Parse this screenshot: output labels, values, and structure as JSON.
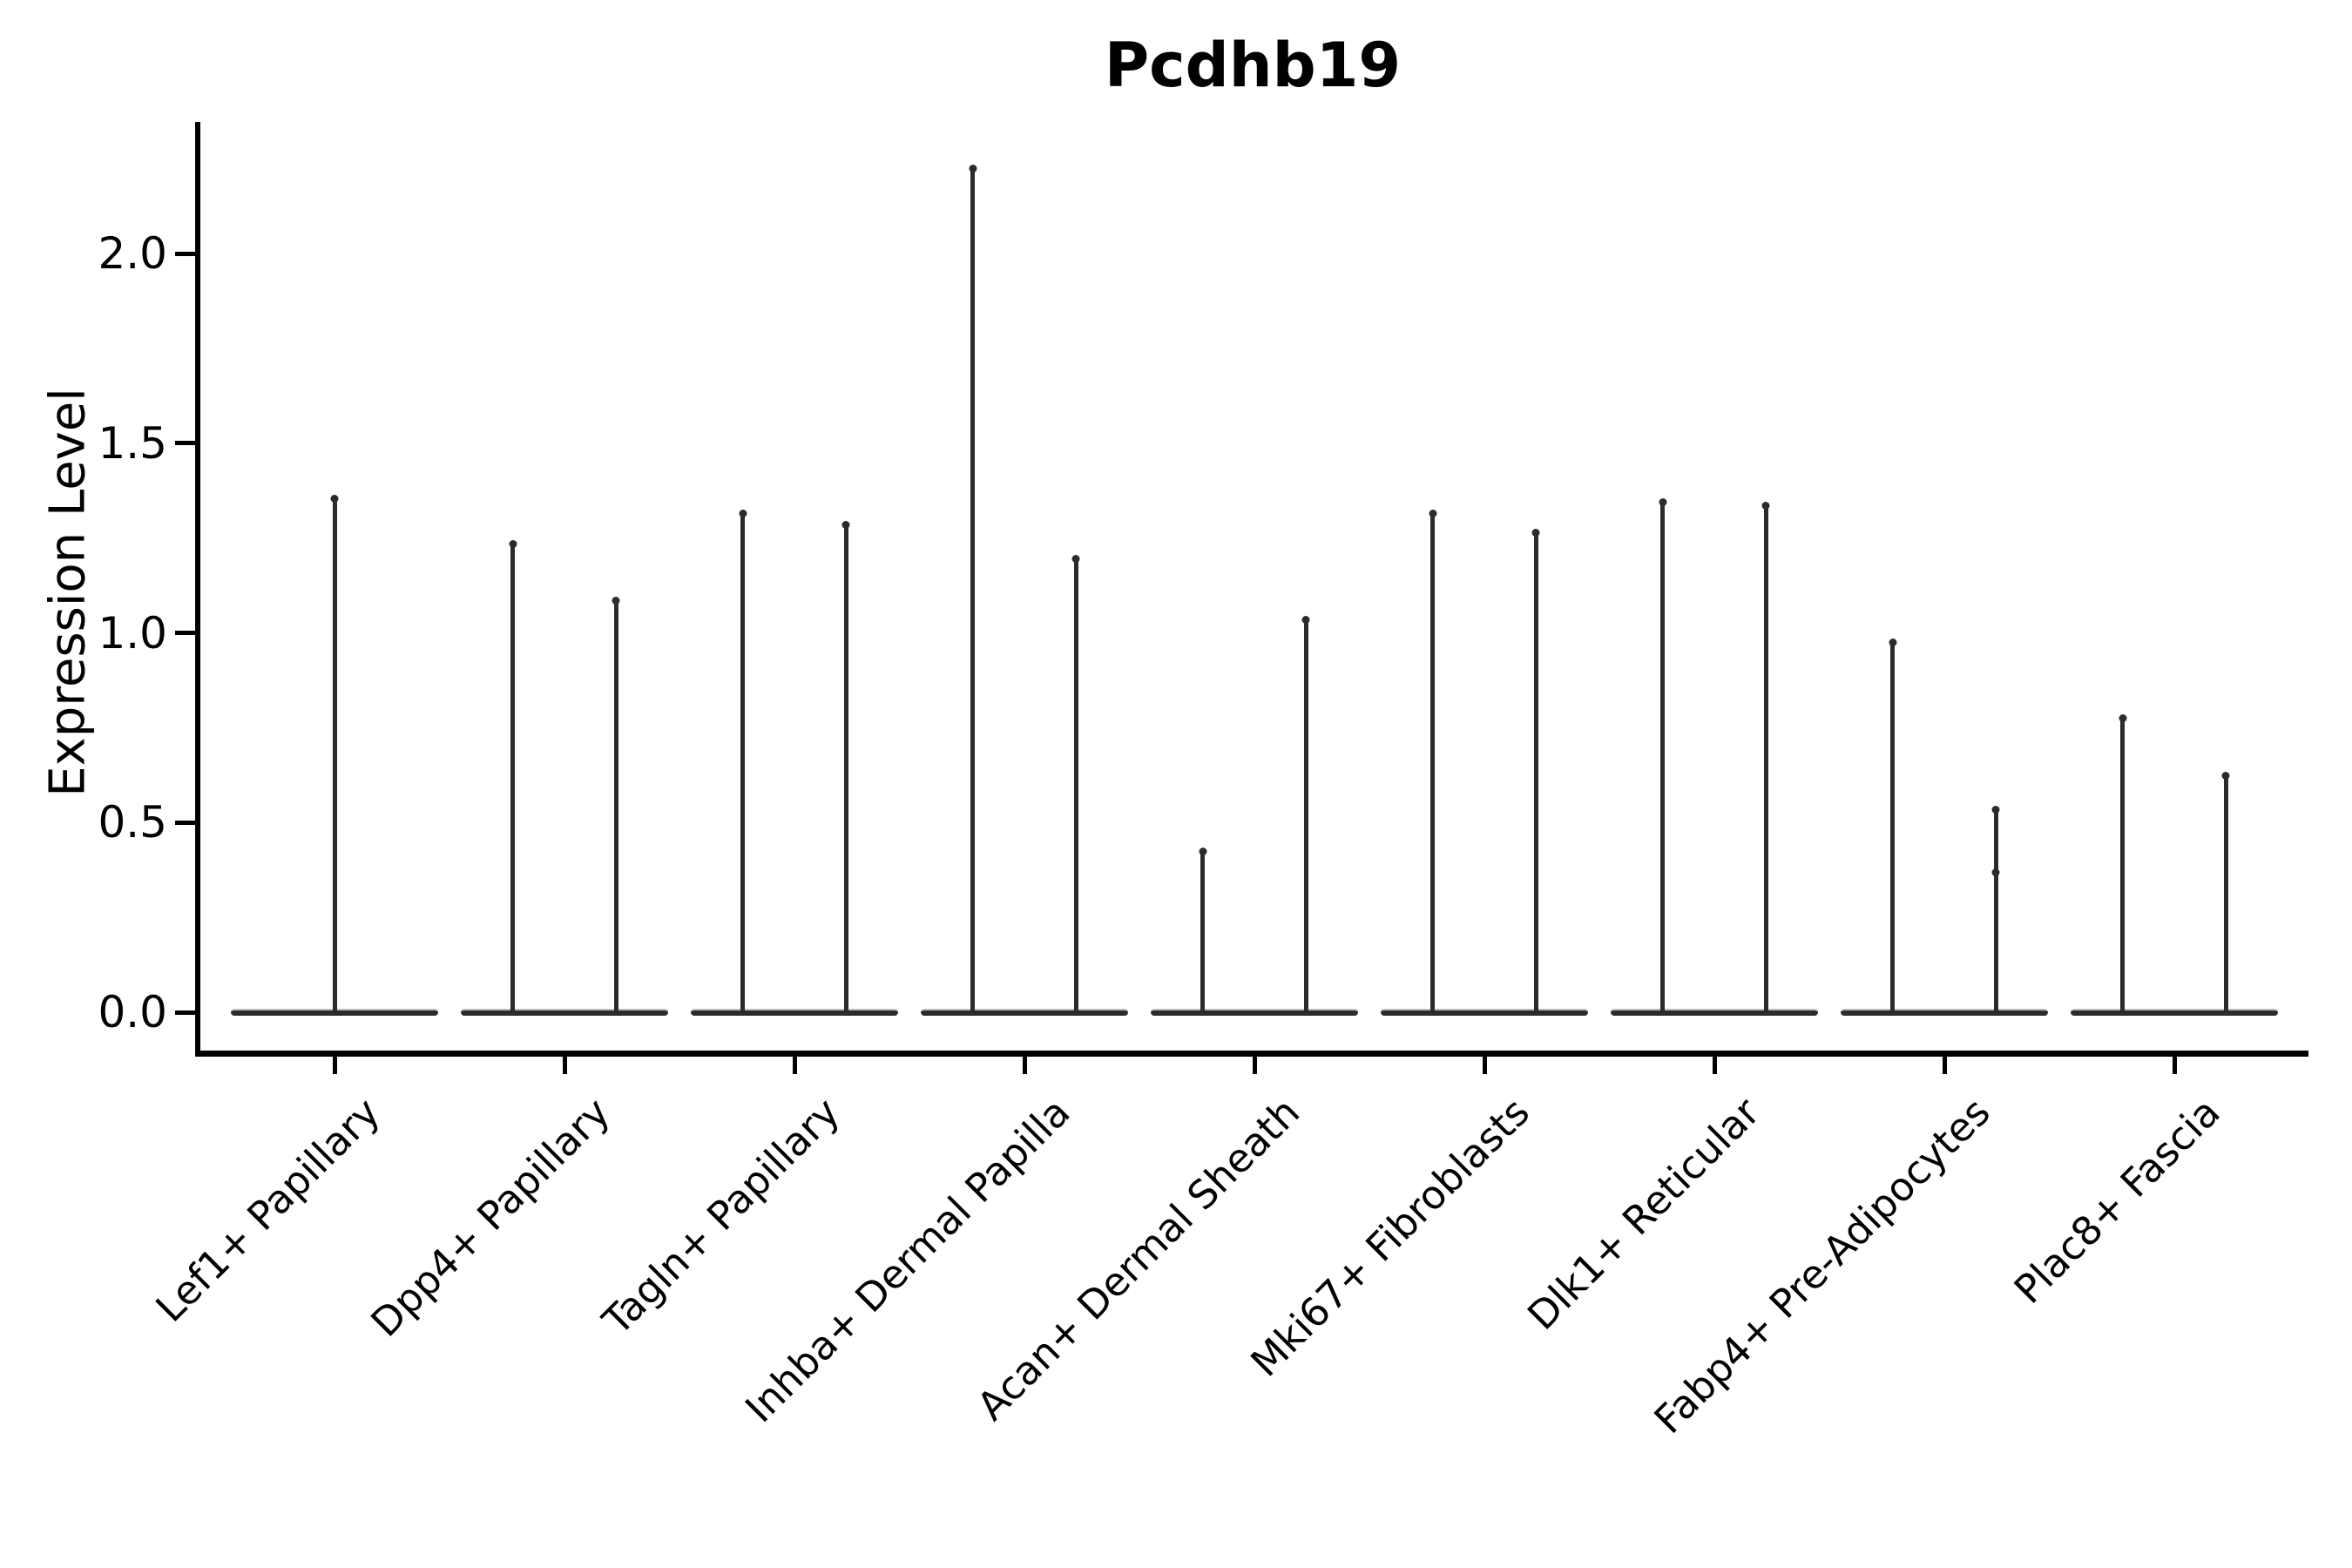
{
  "chart_data": {
    "type": "violin",
    "title": "Pcdhb19",
    "ylabel": "Expression Level",
    "xlabel": "",
    "ylim": [
      0,
      2.35
    ],
    "yticks": [
      0.0,
      0.5,
      1.0,
      1.5,
      2.0
    ],
    "ytick_labels": [
      "0.0",
      "0.5",
      "1.0",
      "1.5",
      "2.0"
    ],
    "grid": false,
    "legend": "none",
    "style_note": "narrow spike violins with flat merged bases at expression 0; monochrome dark-gray on white; only left and bottom spines",
    "categories": [
      "Lef1+ Papillary",
      "Dpp4+ Papillary",
      "Tagln+ Papillary",
      "Inhba+ Dermal Papilla",
      "Acan+ Dermal Sheath",
      "Mki67+ Fibroblasts",
      "Dlk1+ Reticular",
      "Fabp4+ Pre-Adipocytes",
      "Plac8+ Fascia"
    ],
    "violins": [
      {
        "category": "Lef1+ Papillary",
        "spikes": [
          {
            "offset": 0,
            "max": 1.36
          }
        ]
      },
      {
        "category": "Dpp4+ Papillary",
        "spikes": [
          {
            "offset": -0.225,
            "max": 1.24
          },
          {
            "offset": 0.225,
            "max": 1.09
          }
        ]
      },
      {
        "category": "Tagln+ Papillary",
        "spikes": [
          {
            "offset": -0.225,
            "max": 1.32
          },
          {
            "offset": 0.225,
            "max": 1.29
          }
        ]
      },
      {
        "category": "Inhba+ Dermal Papilla",
        "spikes": [
          {
            "offset": -0.225,
            "max": 2.23
          },
          {
            "offset": 0.225,
            "max": 1.2
          }
        ]
      },
      {
        "category": "Acan+ Dermal Sheath",
        "spikes": [
          {
            "offset": -0.225,
            "max": 0.43
          },
          {
            "offset": 0.225,
            "max": 1.04
          }
        ]
      },
      {
        "category": "Mki67+ Fibroblasts",
        "spikes": [
          {
            "offset": -0.225,
            "max": 1.32
          },
          {
            "offset": 0.225,
            "max": 1.27
          }
        ]
      },
      {
        "category": "Dlk1+ Reticular",
        "spikes": [
          {
            "offset": -0.225,
            "max": 1.35
          },
          {
            "offset": 0.225,
            "max": 1.34
          }
        ]
      },
      {
        "category": "Fabp4+ Pre-Adipocytes",
        "spikes": [
          {
            "offset": -0.225,
            "max": 0.98
          },
          {
            "offset": 0.225,
            "max": 0.54,
            "bumps": [
              0.37
            ]
          }
        ]
      },
      {
        "category": "Plac8+ Fascia",
        "spikes": [
          {
            "offset": -0.225,
            "max": 0.78
          },
          {
            "offset": 0.225,
            "max": 0.63
          }
        ]
      }
    ],
    "colors": {
      "violin_line": "#2b2b2b",
      "base_highlight": "#bdbdbd",
      "axis": "#000000",
      "text": "#000000",
      "background": "#ffffff"
    }
  }
}
